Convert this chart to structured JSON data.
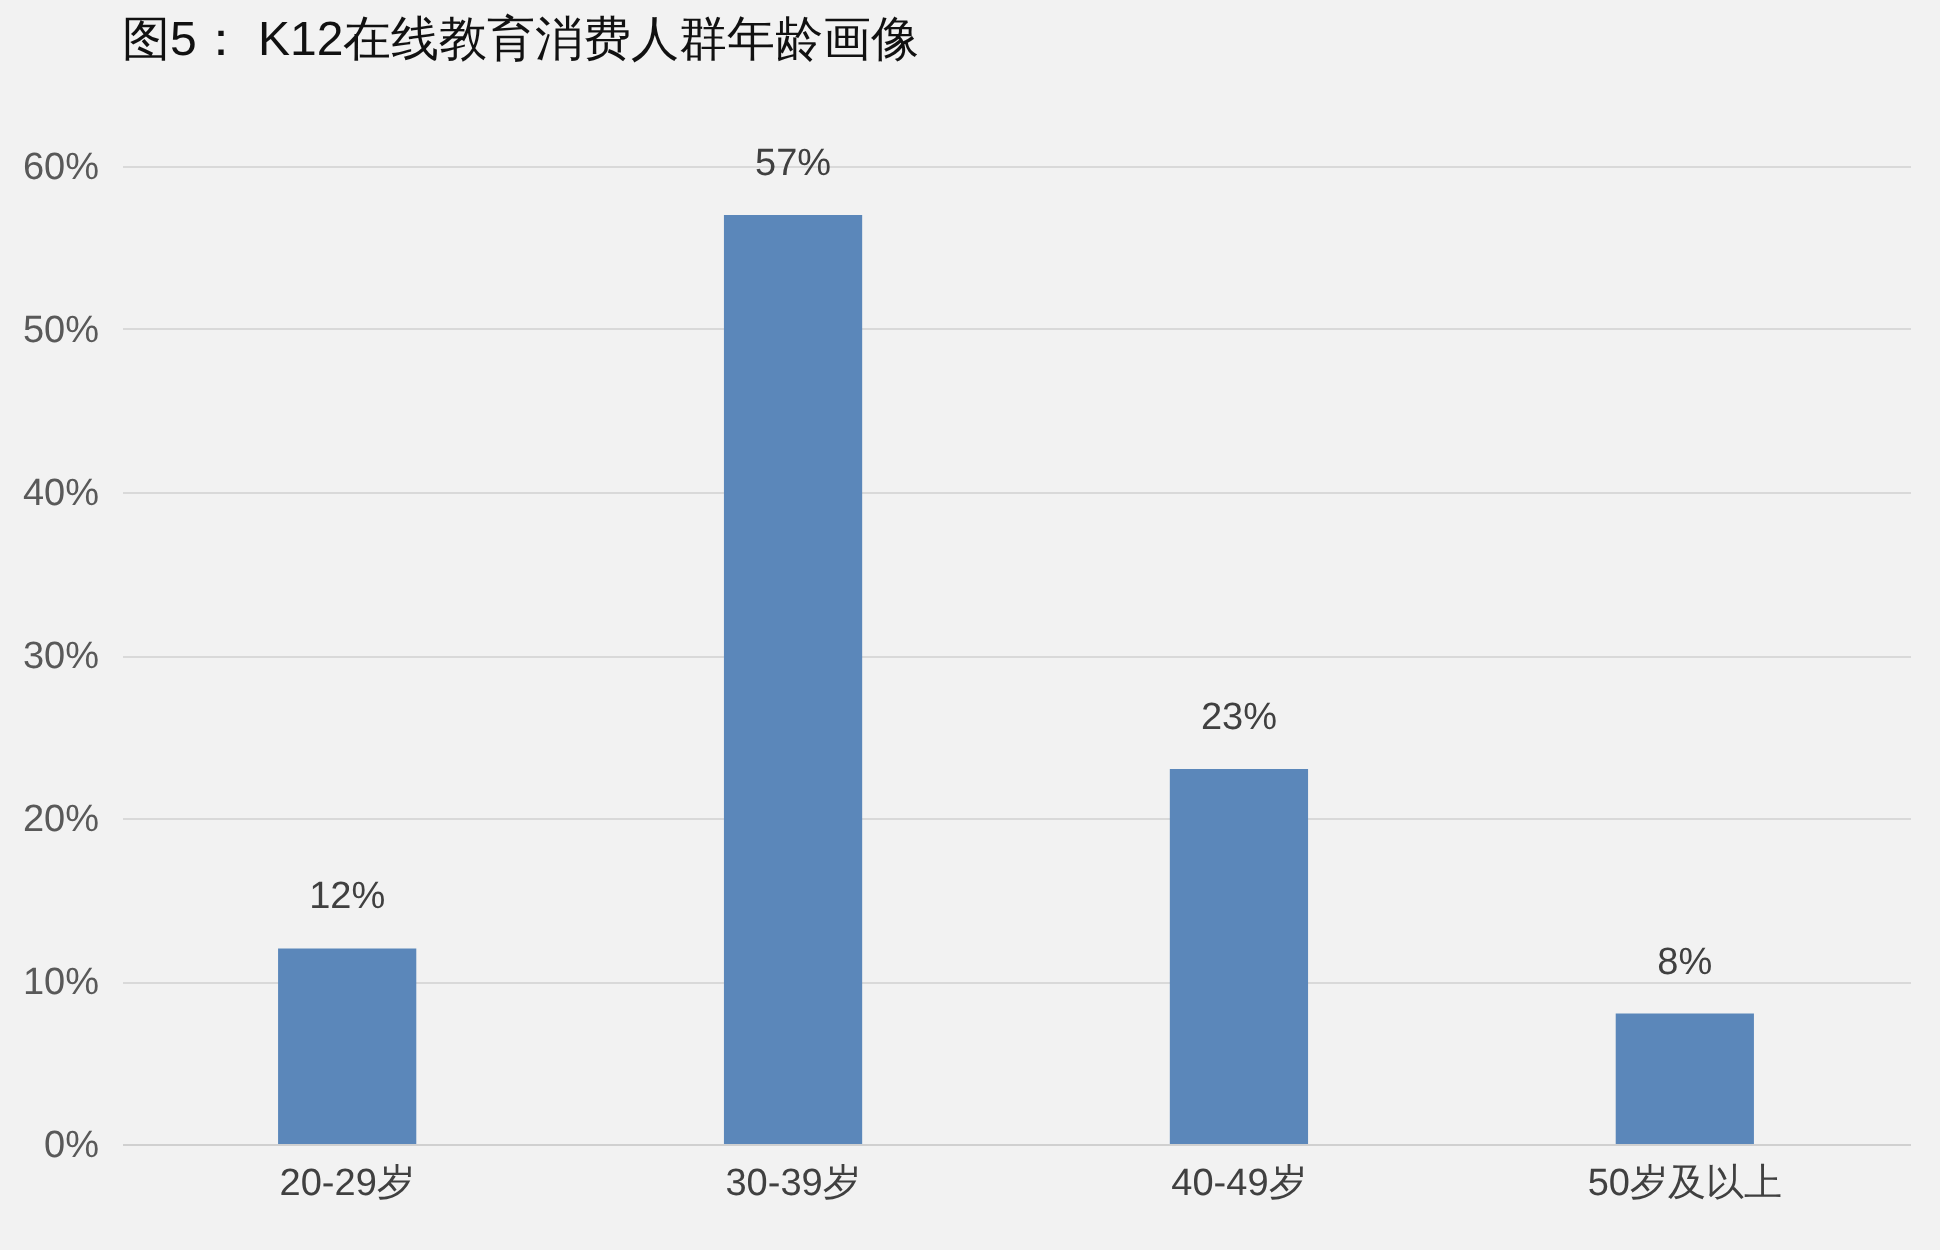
{
  "chart_data": {
    "type": "bar",
    "title": "图5： K12在线教育消费人群年龄画像",
    "categories": [
      "20-29岁",
      "30-39岁",
      "40-49岁",
      "50岁及以上"
    ],
    "values": [
      12,
      57,
      23,
      8
    ],
    "color": "#5b87ba",
    "value_labels": [
      "12%",
      "57%",
      "23%",
      "8%"
    ],
    "ylim": [
      0,
      60
    ],
    "yticks": [
      {
        "value": 0,
        "label": "0%"
      },
      {
        "value": 10,
        "label": "10%"
      },
      {
        "value": 20,
        "label": "20%"
      },
      {
        "value": 30,
        "label": "30%"
      },
      {
        "value": 40,
        "label": "40%"
      },
      {
        "value": 50,
        "label": "50%"
      },
      {
        "value": 60,
        "label": "60%"
      }
    ],
    "grid": "y"
  }
}
